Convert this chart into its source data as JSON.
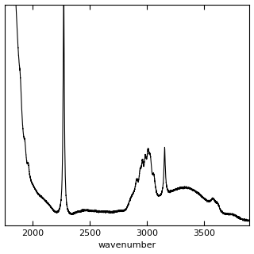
{
  "xlim": [
    1750,
    3900
  ],
  "ylim": [
    0.0,
    1.05
  ],
  "xticks": [
    2000,
    2500,
    3000,
    3500
  ],
  "xlabel": "wavenumber",
  "xlabel_fontsize": 8,
  "tick_fontsize": 8,
  "line_color": "#000000",
  "bg_color": "#ffffff",
  "linewidth": 0.8,
  "figsize": [
    3.2,
    3.2
  ],
  "dpi": 100
}
